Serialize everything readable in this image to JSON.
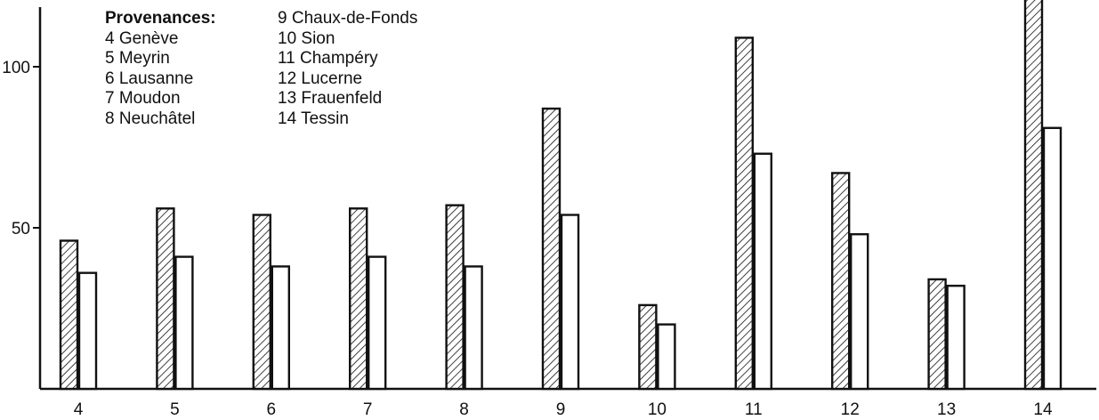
{
  "chart_data": {
    "type": "bar",
    "title": "",
    "xlabel": "",
    "ylabel": "",
    "categories": [
      "4",
      "5",
      "6",
      "7",
      "8",
      "9",
      "10",
      "11",
      "12",
      "13",
      "14"
    ],
    "series": [
      {
        "pattern": "hatched",
        "values": [
          46,
          56,
          54,
          56,
          57,
          87,
          26,
          109,
          67,
          34,
          124
        ]
      },
      {
        "pattern": "plain",
        "values": [
          36,
          41,
          38,
          41,
          38,
          54,
          20,
          73,
          48,
          32,
          81
        ]
      }
    ],
    "ylim": [
      0,
      120
    ],
    "yticks": [
      50,
      100
    ],
    "ytick_labels": [
      "50",
      "100"
    ],
    "grid": false,
    "colors": {
      "ink": "#111111",
      "bar_fill": "#ffffff"
    }
  },
  "legend": {
    "title": "Provenances:",
    "items": [
      "4 Genève",
      "5 Meyrin",
      "6 Lausanne",
      "7 Moudon",
      "8 Neuchâtel",
      "9 Chaux-de-Fonds",
      "10 Sion",
      "11 Champéry",
      "12 Lucerne",
      "13 Frauenfeld",
      "14 Tessin"
    ]
  }
}
